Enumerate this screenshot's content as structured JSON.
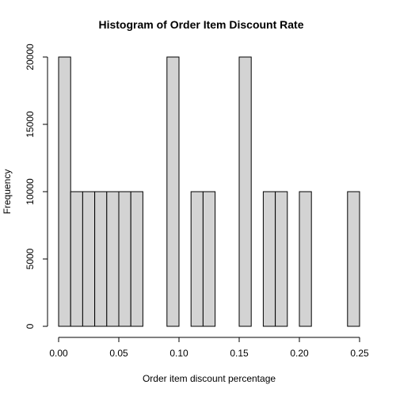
{
  "chart_data": {
    "type": "bar",
    "title": "Histogram of Order Item Discount Rate",
    "xlabel": "Order item discount percentage",
    "ylabel": "Frequency",
    "bar_color": "#d3d3d3",
    "bar_edge_color": "#000000",
    "bin_width": 0.01,
    "bins": [
      {
        "start": 0.0,
        "end": 0.01,
        "count": 20000
      },
      {
        "start": 0.01,
        "end": 0.02,
        "count": 10000
      },
      {
        "start": 0.02,
        "end": 0.03,
        "count": 10000
      },
      {
        "start": 0.03,
        "end": 0.04,
        "count": 10000
      },
      {
        "start": 0.04,
        "end": 0.05,
        "count": 10000
      },
      {
        "start": 0.05,
        "end": 0.06,
        "count": 10000
      },
      {
        "start": 0.06,
        "end": 0.07,
        "count": 10000
      },
      {
        "start": 0.07,
        "end": 0.08,
        "count": 0
      },
      {
        "start": 0.08,
        "end": 0.09,
        "count": 0
      },
      {
        "start": 0.09,
        "end": 0.1,
        "count": 20000
      },
      {
        "start": 0.1,
        "end": 0.11,
        "count": 0
      },
      {
        "start": 0.11,
        "end": 0.12,
        "count": 10000
      },
      {
        "start": 0.12,
        "end": 0.13,
        "count": 10000
      },
      {
        "start": 0.13,
        "end": 0.14,
        "count": 0
      },
      {
        "start": 0.14,
        "end": 0.15,
        "count": 0
      },
      {
        "start": 0.15,
        "end": 0.16,
        "count": 20000
      },
      {
        "start": 0.16,
        "end": 0.17,
        "count": 0
      },
      {
        "start": 0.17,
        "end": 0.18,
        "count": 10000
      },
      {
        "start": 0.18,
        "end": 0.19,
        "count": 10000
      },
      {
        "start": 0.19,
        "end": 0.2,
        "count": 0
      },
      {
        "start": 0.2,
        "end": 0.21,
        "count": 10000
      },
      {
        "start": 0.21,
        "end": 0.22,
        "count": 0
      },
      {
        "start": 0.22,
        "end": 0.23,
        "count": 0
      },
      {
        "start": 0.23,
        "end": 0.24,
        "count": 0
      },
      {
        "start": 0.24,
        "end": 0.25,
        "count": 10000
      }
    ],
    "xlim": [
      0.0,
      0.25
    ],
    "ylim": [
      0,
      20000
    ],
    "x_ticks": [
      0.0,
      0.05,
      0.1,
      0.15,
      0.2,
      0.25
    ],
    "x_tick_labels": [
      "0.00",
      "0.05",
      "0.10",
      "0.15",
      "0.20",
      "0.25"
    ],
    "y_ticks": [
      0,
      5000,
      10000,
      15000,
      20000
    ],
    "y_tick_labels": [
      "0",
      "5000",
      "10000",
      "15000",
      "20000"
    ],
    "grid": false,
    "legend": "none"
  }
}
